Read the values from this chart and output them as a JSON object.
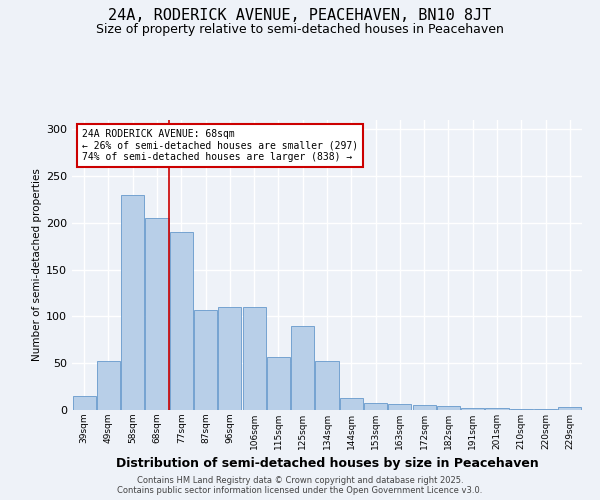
{
  "title1": "24A, RODERICK AVENUE, PEACEHAVEN, BN10 8JT",
  "title2": "Size of property relative to semi-detached houses in Peacehaven",
  "xlabel": "Distribution of semi-detached houses by size in Peacehaven",
  "ylabel": "Number of semi-detached properties",
  "categories": [
    "39sqm",
    "49sqm",
    "58sqm",
    "68sqm",
    "77sqm",
    "87sqm",
    "96sqm",
    "106sqm",
    "115sqm",
    "125sqm",
    "134sqm",
    "144sqm",
    "153sqm",
    "163sqm",
    "172sqm",
    "182sqm",
    "191sqm",
    "201sqm",
    "210sqm",
    "220sqm",
    "229sqm"
  ],
  "values": [
    15,
    52,
    230,
    205,
    190,
    107,
    110,
    110,
    57,
    90,
    52,
    13,
    8,
    6,
    5,
    4,
    2,
    2,
    1,
    1,
    3
  ],
  "bar_color": "#b8cfe8",
  "bar_edge_color": "#6699cc",
  "highlight_index": 3,
  "highlight_line_color": "#cc0000",
  "annotation_text": "24A RODERICK AVENUE: 68sqm\n← 26% of semi-detached houses are smaller (297)\n74% of semi-detached houses are larger (838) →",
  "annotation_box_color": "#ffffff",
  "annotation_box_edge": "#cc0000",
  "ylim": [
    0,
    310
  ],
  "yticks": [
    0,
    50,
    100,
    150,
    200,
    250,
    300
  ],
  "footer": "Contains HM Land Registry data © Crown copyright and database right 2025.\nContains public sector information licensed under the Open Government Licence v3.0.",
  "bg_color": "#eef2f8",
  "grid_color": "#ffffff",
  "title1_fontsize": 11,
  "title2_fontsize": 9
}
